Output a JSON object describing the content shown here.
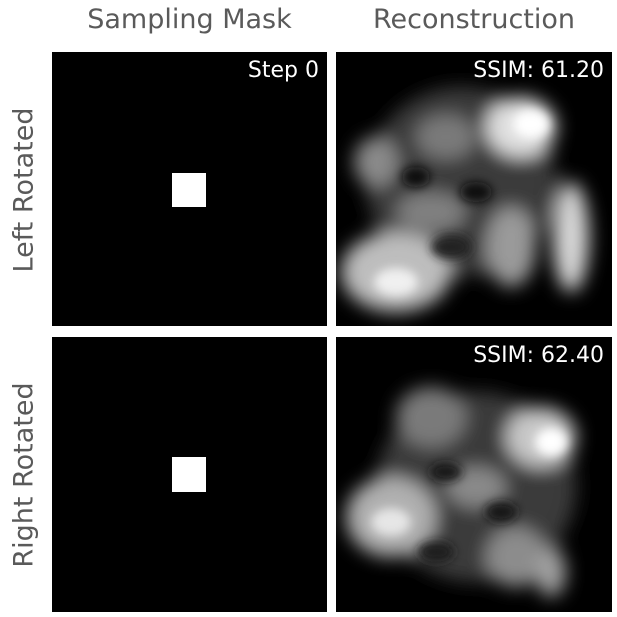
{
  "columns": {
    "mask": "Sampling Mask",
    "recon": "Reconstruction"
  },
  "rows": {
    "top": "Left Rotated",
    "bottom": "Right Rotated"
  },
  "panels": {
    "top_mask_label": "Step 0",
    "top_recon_label": "SSIM: 61.20",
    "bottom_recon_label": "SSIM: 62.40"
  },
  "colors": {
    "panel_background": "#000000",
    "text_header": "#5a5a5a",
    "mask_fill": "#ffffff"
  }
}
